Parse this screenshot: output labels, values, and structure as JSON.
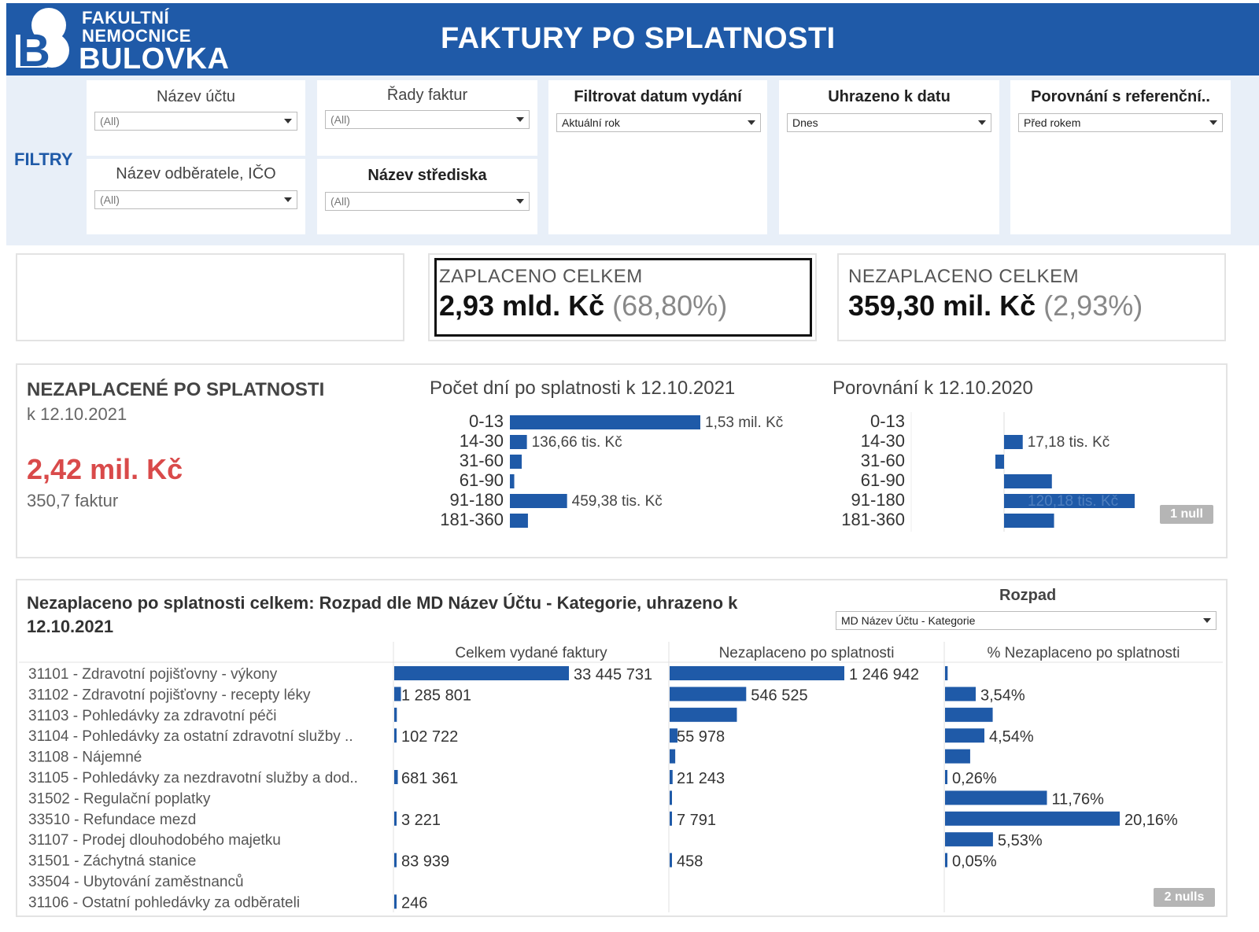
{
  "header": {
    "logo_line1": "FAKULTNÍ",
    "logo_line2": "NEMOCNICE",
    "logo_line3": "BULOVKA",
    "logo_letter": "B",
    "title": "FAKTURY PO SPLATNOSTI",
    "brand_color": "#1f5aa8"
  },
  "filters": {
    "label": "FILTRY",
    "nazev_uctu": {
      "title": "Název účtu",
      "value": "(All)"
    },
    "nazev_odberatele": {
      "title": "Název odběratele, IČO",
      "value": "(All)"
    },
    "rady_faktur": {
      "title": "Řady faktur",
      "value": "(All)"
    },
    "nazev_strediska": {
      "title": "Název střediska",
      "value": "(All)"
    },
    "datum_vydani": {
      "title": "Filtrovat datum vydání",
      "value": "Aktuální rok"
    },
    "uhrazeno_k_datu": {
      "title": "Uhrazeno k datu",
      "value": "Dnes"
    },
    "porovnani": {
      "title": "Porovnání s referenční..",
      "value": "Před rokem"
    }
  },
  "kpis": {
    "zaplaceno": {
      "title": "ZAPLACENO CELKEM",
      "value": "2,93 mld. Kč",
      "pct": "(68,80%)"
    },
    "nezaplaceno": {
      "title": "NEZAPLACENO CELKEM",
      "value": "359,30 mil. Kč",
      "pct": "(2,93%)"
    }
  },
  "overdue": {
    "title": "NEZAPLACENÉ PO SPLATNOSTI",
    "subtitle": "k 12.10.2021",
    "value": "2,42 mil. Kč",
    "count": "350,7 faktur",
    "accent_color": "#d94a4a",
    "null_badge": "1 null"
  },
  "chart_data": [
    {
      "type": "bar",
      "orientation": "horizontal",
      "title": "Počet dní po splatnosti k 12.10.2021",
      "categories": [
        "0-13",
        "14-30",
        "31-60",
        "61-90",
        "91-180",
        "181-360"
      ],
      "values": [
        1530000,
        136660,
        95000,
        35000,
        459380,
        145000
      ],
      "labels": [
        "1,53 mil. Kč",
        "136,66 tis. Kč",
        "",
        "",
        "459,38 tis. Kč",
        ""
      ],
      "unit": "Kč",
      "color": "#1f5aa8"
    },
    {
      "type": "bar",
      "orientation": "horizontal",
      "title": "Porovnání k 12.10.2020",
      "categories": [
        "0-13",
        "14-30",
        "31-60",
        "61-90",
        "91-180",
        "181-360"
      ],
      "values": [
        null,
        17180,
        -8000,
        44000,
        120180,
        46000
      ],
      "labels": [
        "",
        "17,18 tis. Kč",
        "",
        "",
        "120,18 tis. Kč",
        ""
      ],
      "unit": "Kč",
      "color": "#1f5aa8"
    },
    {
      "type": "table",
      "title": "Nezaplaceno po splatnosti celkem: Rozpad dle MD Název Účtu - Kategorie, uhrazeno k 12.10.2021",
      "columns": [
        "Celkem vydané faktury",
        "Nezaplaceno po splatnosti",
        "% Nezaplaceno po splatnosti"
      ],
      "rows": [
        {
          "name": "31101 - Zdravotní pojišťovny - výkony",
          "issued": 33445731,
          "issued_label": "33 445 731",
          "unpaid": 1246942,
          "unpaid_label": "1 246 942",
          "pct": 0.3,
          "pct_label": ""
        },
        {
          "name": "31102 - Zdravotní pojišťovny -  recepty léky",
          "issued": 1285801,
          "issued_label": "1 285 801",
          "unpaid": 546525,
          "unpaid_label": "546 525",
          "pct": 3.54,
          "pct_label": "3,54%"
        },
        {
          "name": "31103 - Pohledávky za zdravotní péči",
          "issued": 500000,
          "issued_label": "",
          "unpaid": 480000,
          "unpaid_label": "",
          "pct": 5.5,
          "pct_label": ""
        },
        {
          "name": "31104 - Pohledávky za ostatní zdravotní služby ..",
          "issued": 102722,
          "issued_label": "102 722",
          "unpaid": 55978,
          "unpaid_label": "55 978",
          "pct": 4.54,
          "pct_label": "4,54%"
        },
        {
          "name": "31108 - Nájemné",
          "issued": 0,
          "issued_label": "",
          "unpaid": 40000,
          "unpaid_label": "",
          "pct": 2.9,
          "pct_label": ""
        },
        {
          "name": "31105 - Pohledávky za nezdravotní služby a dod..",
          "issued": 681361,
          "issued_label": "681 361",
          "unpaid": 21243,
          "unpaid_label": "21 243",
          "pct": 0.26,
          "pct_label": "0,26%"
        },
        {
          "name": "31502 - Regulační poplatky",
          "issued": 0,
          "issued_label": "",
          "unpaid": 10000,
          "unpaid_label": "",
          "pct": 11.76,
          "pct_label": "11,76%"
        },
        {
          "name": "33510 - Refundace mezd",
          "issued": 3221,
          "issued_label": "3 221",
          "unpaid": 7791,
          "unpaid_label": "7 791",
          "pct": 20.16,
          "pct_label": "20,16%"
        },
        {
          "name": "31107 - Prodej dlouhodobého majetku",
          "issued": 0,
          "issued_label": "",
          "unpaid": 0,
          "unpaid_label": "",
          "pct": 5.53,
          "pct_label": "5,53%"
        },
        {
          "name": "31501 - Záchytná stanice",
          "issued": 83939,
          "issued_label": "83 939",
          "unpaid": 458,
          "unpaid_label": "458",
          "pct": 0.05,
          "pct_label": "0,05%"
        },
        {
          "name": "33504 - Ubytování zaměstnanců",
          "issued": 0,
          "issued_label": "",
          "unpaid": 0,
          "unpaid_label": "",
          "pct": 0,
          "pct_label": ""
        },
        {
          "name": "31106 - Ostatní pohledávky za odběrateli",
          "issued": 246,
          "issued_label": "246",
          "unpaid": 0,
          "unpaid_label": "",
          "pct": 0,
          "pct_label": ""
        }
      ],
      "color": "#1f5aa8"
    }
  ],
  "breakdown": {
    "title": "Nezaplaceno po splatnosti celkem: Rozpad dle MD Název Účtu - Kategorie, uhrazeno k 12.10.2021",
    "rozpad_label": "Rozpad",
    "rozpad_value": "MD Název Účtu - Kategorie",
    "null_badge": "2 nulls"
  }
}
